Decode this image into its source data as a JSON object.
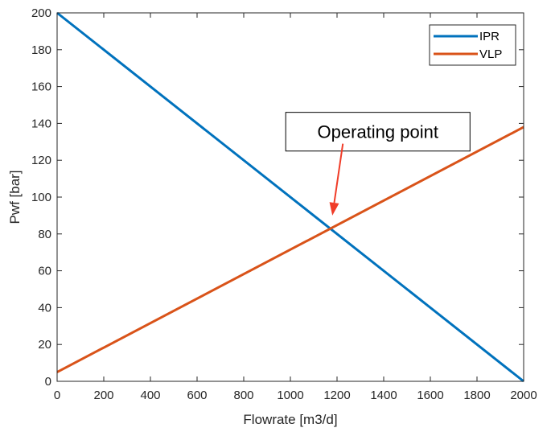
{
  "chart_data": {
    "type": "line",
    "xlabel": "Flowrate [m3/d]",
    "ylabel": "Pwf [bar]",
    "xlim": [
      0,
      2000
    ],
    "ylim": [
      0,
      200
    ],
    "xticks": [
      0,
      200,
      400,
      600,
      800,
      1000,
      1200,
      1400,
      1600,
      1800,
      2000
    ],
    "yticks": [
      0,
      20,
      40,
      60,
      80,
      100,
      120,
      140,
      160,
      180,
      200
    ],
    "grid": false,
    "legend_position": "top-right",
    "series": [
      {
        "name": "IPR",
        "color": "#0072BD",
        "x": [
          0,
          2000
        ],
        "y": [
          200,
          0
        ]
      },
      {
        "name": "VLP",
        "color": "#D95319",
        "x": [
          0,
          2000
        ],
        "y": [
          5,
          138
        ]
      }
    ],
    "annotation": {
      "text": "Operating point",
      "box_x": [
        980,
        1770
      ],
      "box_y": [
        125,
        146
      ],
      "arrow_from": [
        1225,
        129
      ],
      "arrow_to": [
        1180,
        90
      ],
      "arrow_color": "#F03C28"
    }
  }
}
